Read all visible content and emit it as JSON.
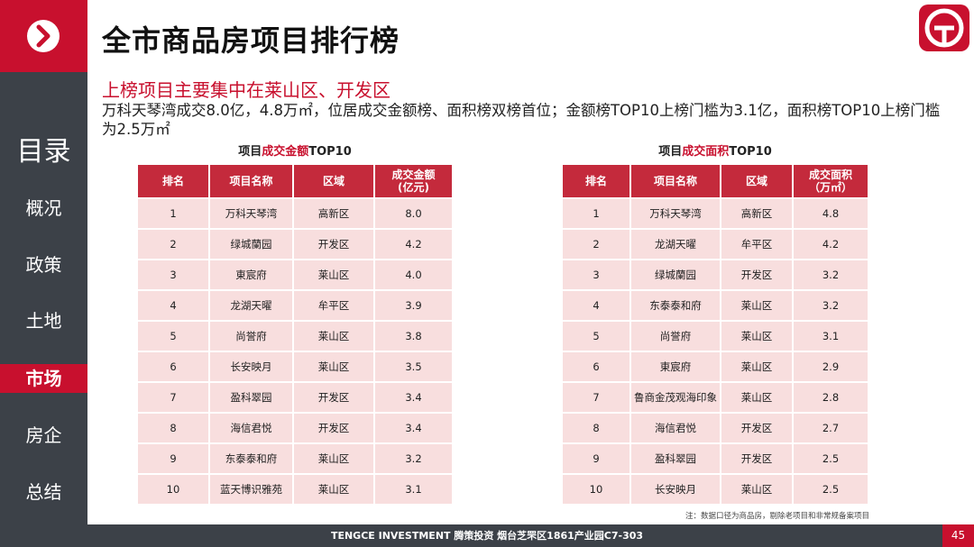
{
  "sidebar": {
    "heading": "目录",
    "menu": [
      "概况",
      "政策",
      "土地",
      "市场",
      "房企",
      "总结"
    ],
    "active": 3
  },
  "header": {
    "title": "全市商品房项目排行榜"
  },
  "summary": {
    "headline": "上榜项目主要集中在莱山区、开发区",
    "text": "万科天琴湾成交8.0亿，4.8万㎡，位居成交金额榜、面积榜双榜首位；金额榜TOP10上榜门槛为3.1亿，面积榜TOP10上榜门槛为2.5万㎡"
  },
  "tables": [
    {
      "title": [
        "项目",
        "成交金额",
        "TOP10"
      ],
      "highlight": 1,
      "columns": [
        [
          "排名"
        ],
        [
          "项目名称"
        ],
        [
          "区域"
        ],
        [
          "成交金额",
          "(亿元)"
        ]
      ],
      "rows": [
        [
          "1",
          "万科天琴湾",
          "高新区",
          "8.0"
        ],
        [
          "2",
          "绿城蘭园",
          "开发区",
          "4.2"
        ],
        [
          "3",
          "東宸府",
          "莱山区",
          "4.0"
        ],
        [
          "4",
          "龙湖天曜",
          "牟平区",
          "3.9"
        ],
        [
          "5",
          "尚誉府",
          "莱山区",
          "3.8"
        ],
        [
          "6",
          "长安映月",
          "莱山区",
          "3.5"
        ],
        [
          "7",
          "盈科翠园",
          "开发区",
          "3.4"
        ],
        [
          "8",
          "海信君悦",
          "开发区",
          "3.4"
        ],
        [
          "9",
          "东泰泰和府",
          "莱山区",
          "3.2"
        ],
        [
          "10",
          "蓝天博识雅苑",
          "莱山区",
          "3.1"
        ]
      ]
    },
    {
      "title": [
        "项目",
        "成交面积",
        "TOP10"
      ],
      "highlight": 1,
      "columns": [
        [
          "排名"
        ],
        [
          "项目名称"
        ],
        [
          "区域"
        ],
        [
          "成交面积",
          "（万㎡）"
        ]
      ],
      "rows": [
        [
          "1",
          "万科天琴湾",
          "高新区",
          "4.8"
        ],
        [
          "2",
          "龙湖天曜",
          "牟平区",
          "4.2"
        ],
        [
          "3",
          "绿城蘭园",
          "开发区",
          "3.2"
        ],
        [
          "4",
          "东泰泰和府",
          "莱山区",
          "3.2"
        ],
        [
          "5",
          "尚誉府",
          "莱山区",
          "3.1"
        ],
        [
          "6",
          "東宸府",
          "莱山区",
          "2.9"
        ],
        [
          "7",
          "鲁商金茂观海印象",
          "莱山区",
          "2.8"
        ],
        [
          "8",
          "海信君悦",
          "开发区",
          "2.7"
        ],
        [
          "9",
          "盈科翠园",
          "开发区",
          "2.5"
        ],
        [
          "10",
          "长安映月",
          "莱山区",
          "2.5"
        ]
      ]
    }
  ],
  "note": "注：数据口径为商品房，剔除老项目和非常规备案项目",
  "footer": {
    "text": "TENGCE INVESTMENT 腾策投资 烟台芝罘区1861产业园C7-303",
    "page": "45"
  }
}
